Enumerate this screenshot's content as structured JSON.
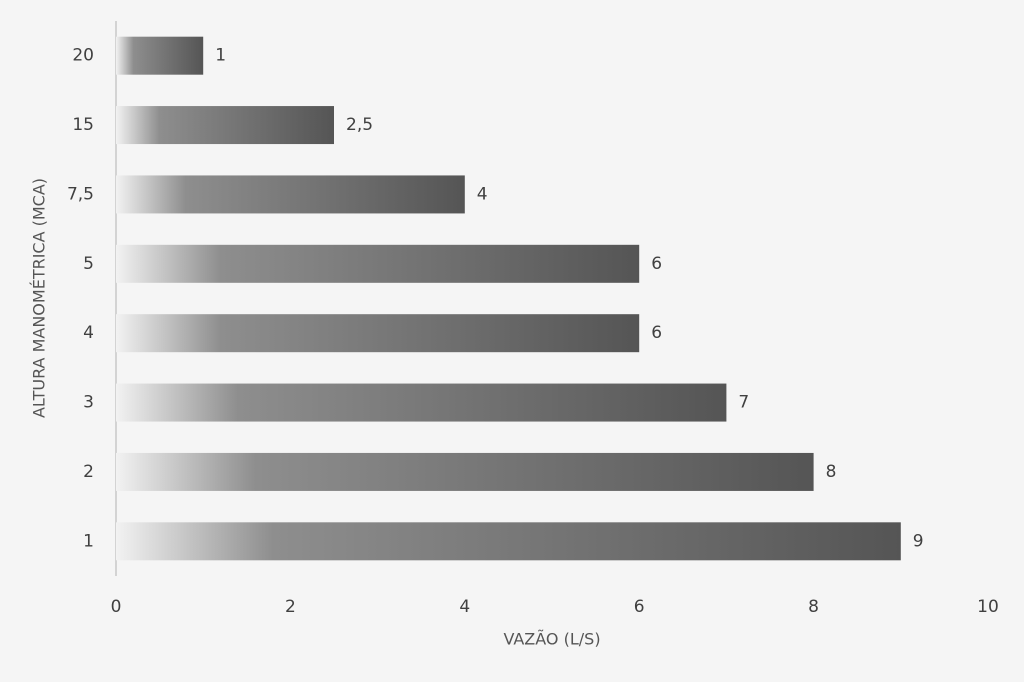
{
  "chart_data": {
    "type": "bar",
    "orientation": "horizontal",
    "x_label": "VAZÃO (L/S)",
    "y_label": "ALTURA MANOMÉTRICA (MCA)",
    "categories": [
      "20",
      "15",
      "7,5",
      "5",
      "4",
      "3",
      "2",
      "1"
    ],
    "values": [
      1,
      2.5,
      4,
      6,
      6,
      7,
      8,
      9
    ],
    "value_labels": [
      "1",
      "2,5",
      "4",
      "6",
      "6",
      "7",
      "8",
      "9"
    ],
    "color": "#555555",
    "xlim": [
      0,
      10
    ],
    "xticks": [
      0,
      2,
      4,
      6,
      8,
      10
    ],
    "grid": false
  }
}
